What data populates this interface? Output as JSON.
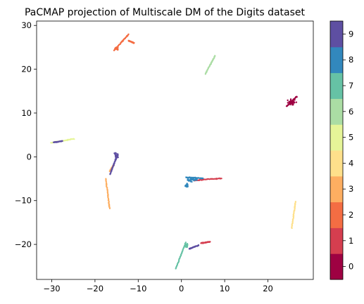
{
  "chart_data": {
    "type": "scatter",
    "title": "PaCMAP projection of Multiscale DM of the Digits dataset",
    "xlabel": "",
    "ylabel": "",
    "xlim": [
      -33.5,
      30.5
    ],
    "ylim": [
      -28,
      31
    ],
    "xticks": [
      -30,
      -20,
      -10,
      0,
      10,
      20
    ],
    "yticks": [
      -20,
      -10,
      0,
      10,
      20,
      30
    ],
    "grid": false,
    "colorbar": {
      "ticks": [
        0,
        1,
        2,
        3,
        4,
        5,
        6,
        7,
        8,
        9
      ],
      "colors": [
        "#9e0142",
        "#d53e4f",
        "#f46d43",
        "#fdae61",
        "#fee08b",
        "#e6f598",
        "#abdda4",
        "#66c2a5",
        "#3288bd",
        "#5e4fa2"
      ]
    },
    "series": [
      {
        "label": 0,
        "segments": [
          [
            24.3,
            11.5,
            26.7,
            13.8
          ]
        ],
        "blobs": [
          [
            25.5,
            12.5,
            1.2,
            0.9
          ]
        ]
      },
      {
        "label": 1,
        "segments": [
          [
            3.0,
            -5.4,
            9.3,
            -4.9
          ],
          [
            4.5,
            -19.7,
            6.6,
            -19.4
          ]
        ],
        "blobs": []
      },
      {
        "label": 2,
        "segments": [
          [
            -15.6,
            24.3,
            -12.2,
            28.0
          ],
          [
            -12.2,
            26.5,
            -11.0,
            26.0
          ]
        ],
        "blobs": [
          [
            -15.0,
            24.7,
            0.5,
            0.5
          ]
        ]
      },
      {
        "label": 3,
        "segments": [
          [
            -17.5,
            -5.0,
            -16.6,
            -11.8
          ],
          [
            -16.6,
            -3.3,
            -15.6,
            -1.8
          ]
        ],
        "blobs": []
      },
      {
        "label": 4,
        "segments": [
          [
            25.5,
            -16.3,
            26.4,
            -10.2
          ]
        ],
        "blobs": []
      },
      {
        "label": 5,
        "segments": [
          [
            -30.2,
            3.2,
            -24.8,
            4.1
          ]
        ],
        "blobs": []
      },
      {
        "label": 6,
        "segments": [
          [
            5.5,
            18.9,
            7.8,
            23.1
          ]
        ],
        "blobs": []
      },
      {
        "label": 7,
        "segments": [
          [
            -1.3,
            -25.5,
            1.0,
            -19.6
          ]
        ],
        "blobs": [
          [
            1.2,
            -20.3,
            0.3,
            0.6
          ]
        ]
      },
      {
        "label": 8,
        "segments": [
          [
            1.0,
            -4.7,
            5.0,
            -4.9
          ]
        ],
        "blobs": [
          [
            2.5,
            -5.2,
            1.6,
            0.6
          ],
          [
            1.2,
            -6.5,
            0.4,
            0.6
          ]
        ]
      },
      {
        "label": 9,
        "segments": [
          [
            -15.0,
            0.0,
            -16.5,
            -4.0
          ],
          [
            1.8,
            -21.0,
            4.0,
            -20.2
          ],
          [
            -29.5,
            3.3,
            -27.5,
            3.6
          ]
        ],
        "blobs": [
          [
            -15.0,
            0.3,
            0.6,
            0.8
          ]
        ]
      }
    ]
  }
}
